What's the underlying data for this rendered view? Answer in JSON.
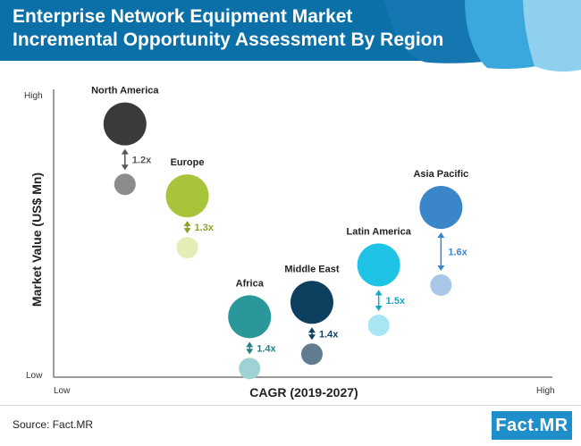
{
  "header": {
    "title_line1": "Enterprise Network Equipment Market",
    "title_line2": "Incremental Opportunity Assessment By Region"
  },
  "footer": {
    "source": "Source: Fact.MR",
    "logo": "Fact.MR"
  },
  "colors": {
    "banner_dark": "#0b6fa8",
    "banner_mid": "#1f8fcb",
    "banner_light": "#8fd0ee"
  },
  "chart_data": {
    "type": "bubble-comparison",
    "title": "Enterprise Network Equipment Market Incremental Opportunity Assessment By Region",
    "xlabel": "CAGR (2019-2027)",
    "ylabel": "Market Value (US$ Mn)",
    "x_ticks": {
      "low": "Low",
      "high": "High"
    },
    "y_ticks": {
      "low": "Low",
      "high": "High"
    },
    "xlim": [
      0,
      10
    ],
    "ylim": [
      0,
      10
    ],
    "series": [
      {
        "name": "North America",
        "multiplier": "1.2x",
        "x": 1.0,
        "y_2027": 8.8,
        "y_2019": 6.7,
        "color": "#3a3a3a",
        "light_color": "#8c8c8c",
        "label_color": "#555555"
      },
      {
        "name": "Europe",
        "multiplier": "1.3x",
        "x": 2.4,
        "y_2027": 6.3,
        "y_2019": 4.5,
        "color": "#a8c43a",
        "light_color": "#e3eeb6",
        "label_color": "#8aa42a"
      },
      {
        "name": "Africa",
        "multiplier": "1.4x",
        "x": 3.8,
        "y_2027": 2.1,
        "y_2019": 0.3,
        "color": "#2a979b",
        "light_color": "#9fd2d5",
        "label_color": "#2a7f83"
      },
      {
        "name": "Middle East",
        "multiplier": "1.4x",
        "x": 5.2,
        "y_2027": 2.6,
        "y_2019": 0.8,
        "color": "#0d3f5e",
        "light_color": "#607d8f",
        "label_color": "#0d3f5e"
      },
      {
        "name": "Latin America",
        "multiplier": "1.5x",
        "x": 6.7,
        "y_2027": 3.9,
        "y_2019": 1.8,
        "color": "#1ec3e6",
        "light_color": "#a8e6f4",
        "label_color": "#16a7c7"
      },
      {
        "name": "Asia Pacific",
        "multiplier": "1.6x",
        "x": 8.1,
        "y_2027": 5.9,
        "y_2019": 3.2,
        "color": "#3b86c9",
        "light_color": "#a9c8e8",
        "label_color": "#3b86c9"
      }
    ]
  }
}
